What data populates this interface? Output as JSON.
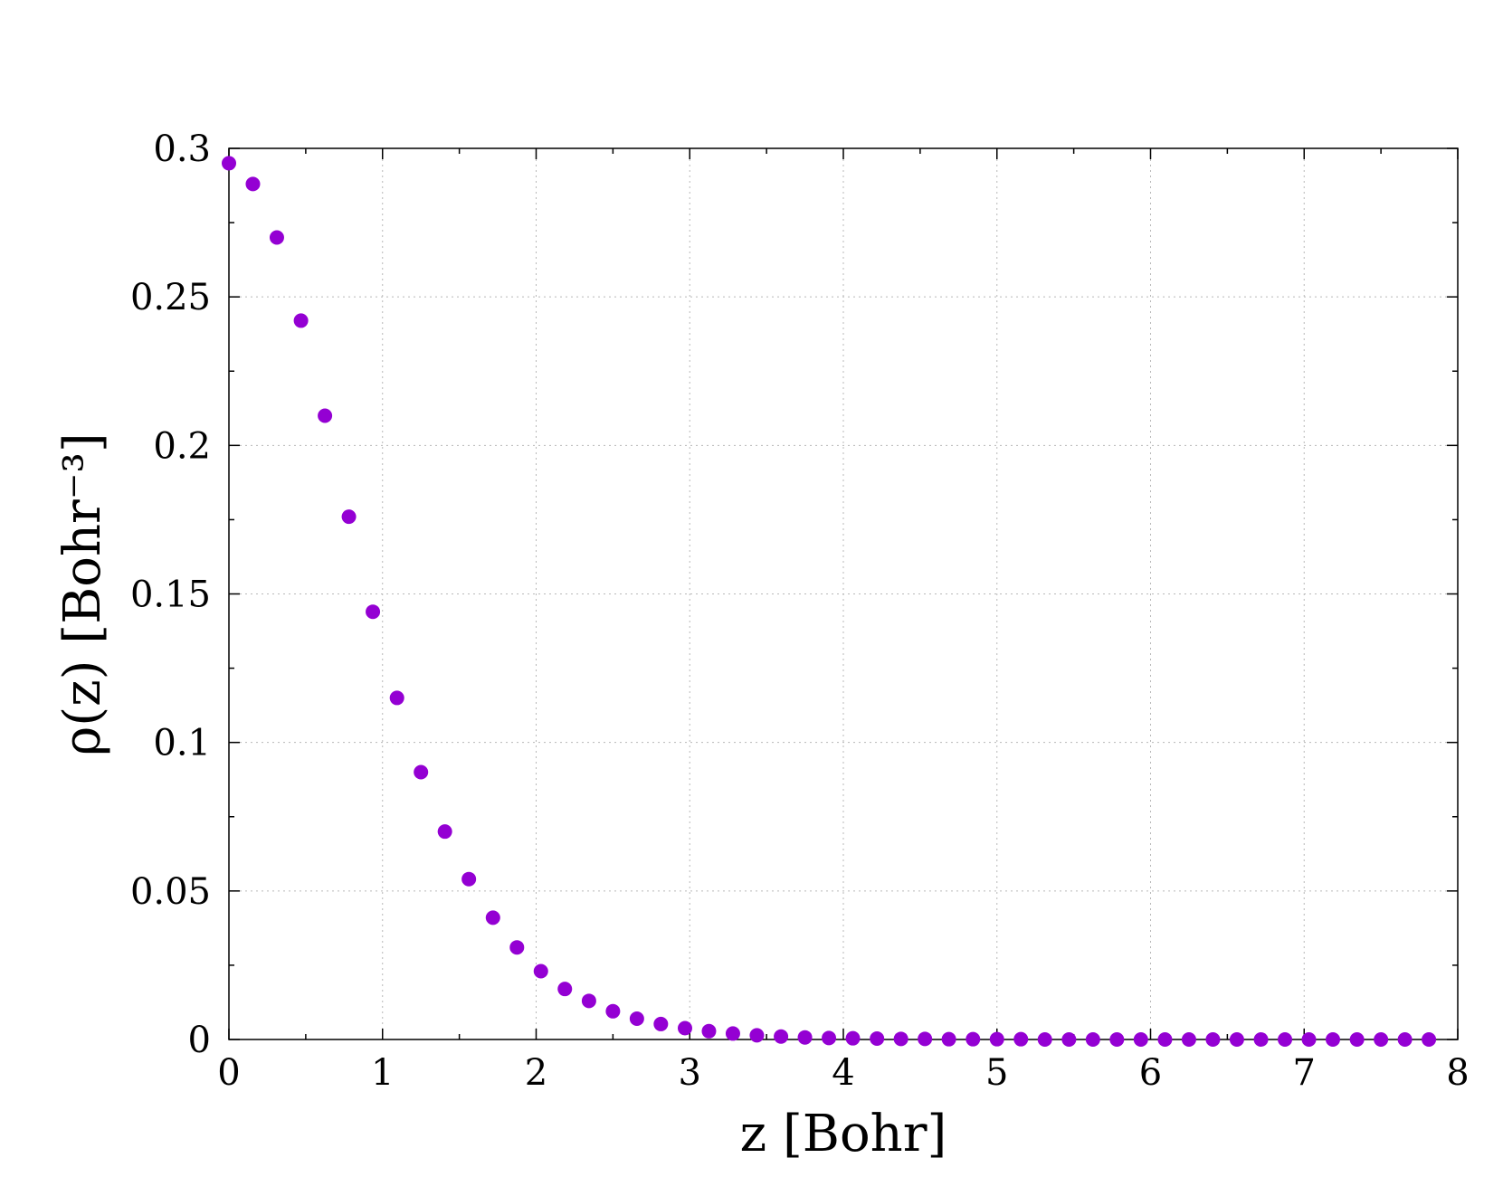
{
  "chart_data": {
    "type": "scatter",
    "xlabel": "z [Bohr]",
    "ylabel": "ρ(z) [Bohr⁻³]",
    "xlim": [
      0,
      8
    ],
    "ylim": [
      0,
      0.3
    ],
    "xticks": [
      0,
      1,
      2,
      3,
      4,
      5,
      6,
      7,
      8
    ],
    "xtick_labels": [
      "0",
      "1",
      "2",
      "3",
      "4",
      "5",
      "6",
      "7",
      "8"
    ],
    "yticks": [
      0,
      0.05,
      0.1,
      0.15,
      0.2,
      0.25,
      0.3
    ],
    "ytick_labels": [
      "0",
      "0.05",
      "0.1",
      "0.15",
      "0.2",
      "0.25",
      "0.3"
    ],
    "grid": true,
    "color": "#9400d3",
    "series": [
      {
        "x": [
          0,
          0.156,
          0.312,
          0.469,
          0.625,
          0.781,
          0.937,
          1.094,
          1.25,
          1.406,
          1.562,
          1.719,
          1.875,
          2.031,
          2.187,
          2.344,
          2.5,
          2.656,
          2.812,
          2.969,
          3.125,
          3.281,
          3.437,
          3.594,
          3.75,
          3.906,
          4.062,
          4.219,
          4.375,
          4.531,
          4.687,
          4.844,
          5.0,
          5.156,
          5.312,
          5.469,
          5.625,
          5.781,
          5.937,
          6.094,
          6.25,
          6.406,
          6.562,
          6.719,
          6.875,
          7.031,
          7.187,
          7.344,
          7.5,
          7.656,
          7.812
        ],
        "y": [
          0.295,
          0.288,
          0.27,
          0.242,
          0.21,
          0.176,
          0.144,
          0.115,
          0.09,
          0.07,
          0.054,
          0.041,
          0.031,
          0.023,
          0.017,
          0.013,
          0.0095,
          0.007,
          0.0052,
          0.0038,
          0.0028,
          0.002,
          0.0014,
          0.001,
          0.0007,
          0.0005,
          0.0004,
          0.0003,
          0.0002,
          0.0002,
          0.0001,
          0.0001,
          0.0001,
          0.0001,
          0,
          0,
          0,
          0,
          0,
          0,
          0,
          0,
          0,
          0,
          0,
          0,
          0,
          0,
          0,
          0,
          0
        ]
      }
    ]
  }
}
